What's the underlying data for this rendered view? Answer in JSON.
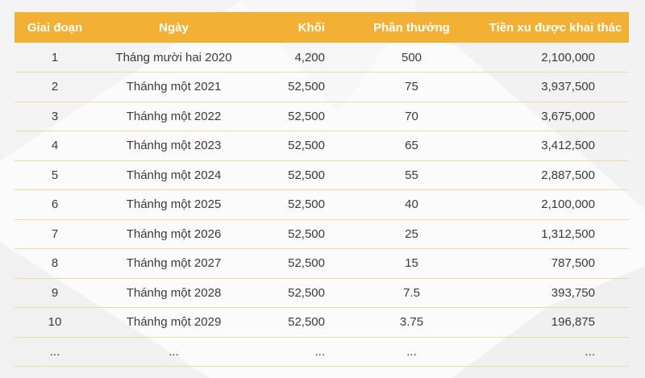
{
  "table": {
    "headers": [
      "Giai đoạn",
      "Ngày",
      "Khối",
      "Phần thưởng",
      "Tiền xu được khai thác"
    ],
    "rows": [
      [
        "1",
        "Tháng mười hai 2020",
        "4,200",
        "500",
        "2,100,000"
      ],
      [
        "2",
        "Thánhg một 2021",
        "52,500",
        "75",
        "3,937,500"
      ],
      [
        "3",
        "Thánhg một 2022",
        "52,500",
        "70",
        "3,675,000"
      ],
      [
        "4",
        "Thánhg một 2023",
        "52,500",
        "65",
        "3,412,500"
      ],
      [
        "5",
        "Thánhg một 2024",
        "52,500",
        "55",
        "2,887,500"
      ],
      [
        "6",
        "Thánhg một 2025",
        "52,500",
        "40",
        "2,100,000"
      ],
      [
        "7",
        "Thánhg một 2026",
        "52,500",
        "25",
        "1,312,500"
      ],
      [
        "8",
        "Thánhg một 2027",
        "52,500",
        "15",
        "787,500"
      ],
      [
        "9",
        "Thánhg một 2028",
        "52,500",
        "7.5",
        "393,750"
      ],
      [
        "10",
        "Thánhg một 2029",
        "52,500",
        "3.75",
        "196,875"
      ],
      [
        "...",
        "...",
        "...",
        "...",
        "..."
      ]
    ]
  },
  "colors": {
    "header_bg": "#f2b134",
    "header_text": "#ffffff",
    "row_border": "#f0d9a8",
    "cell_text": "#3a3a3a"
  }
}
